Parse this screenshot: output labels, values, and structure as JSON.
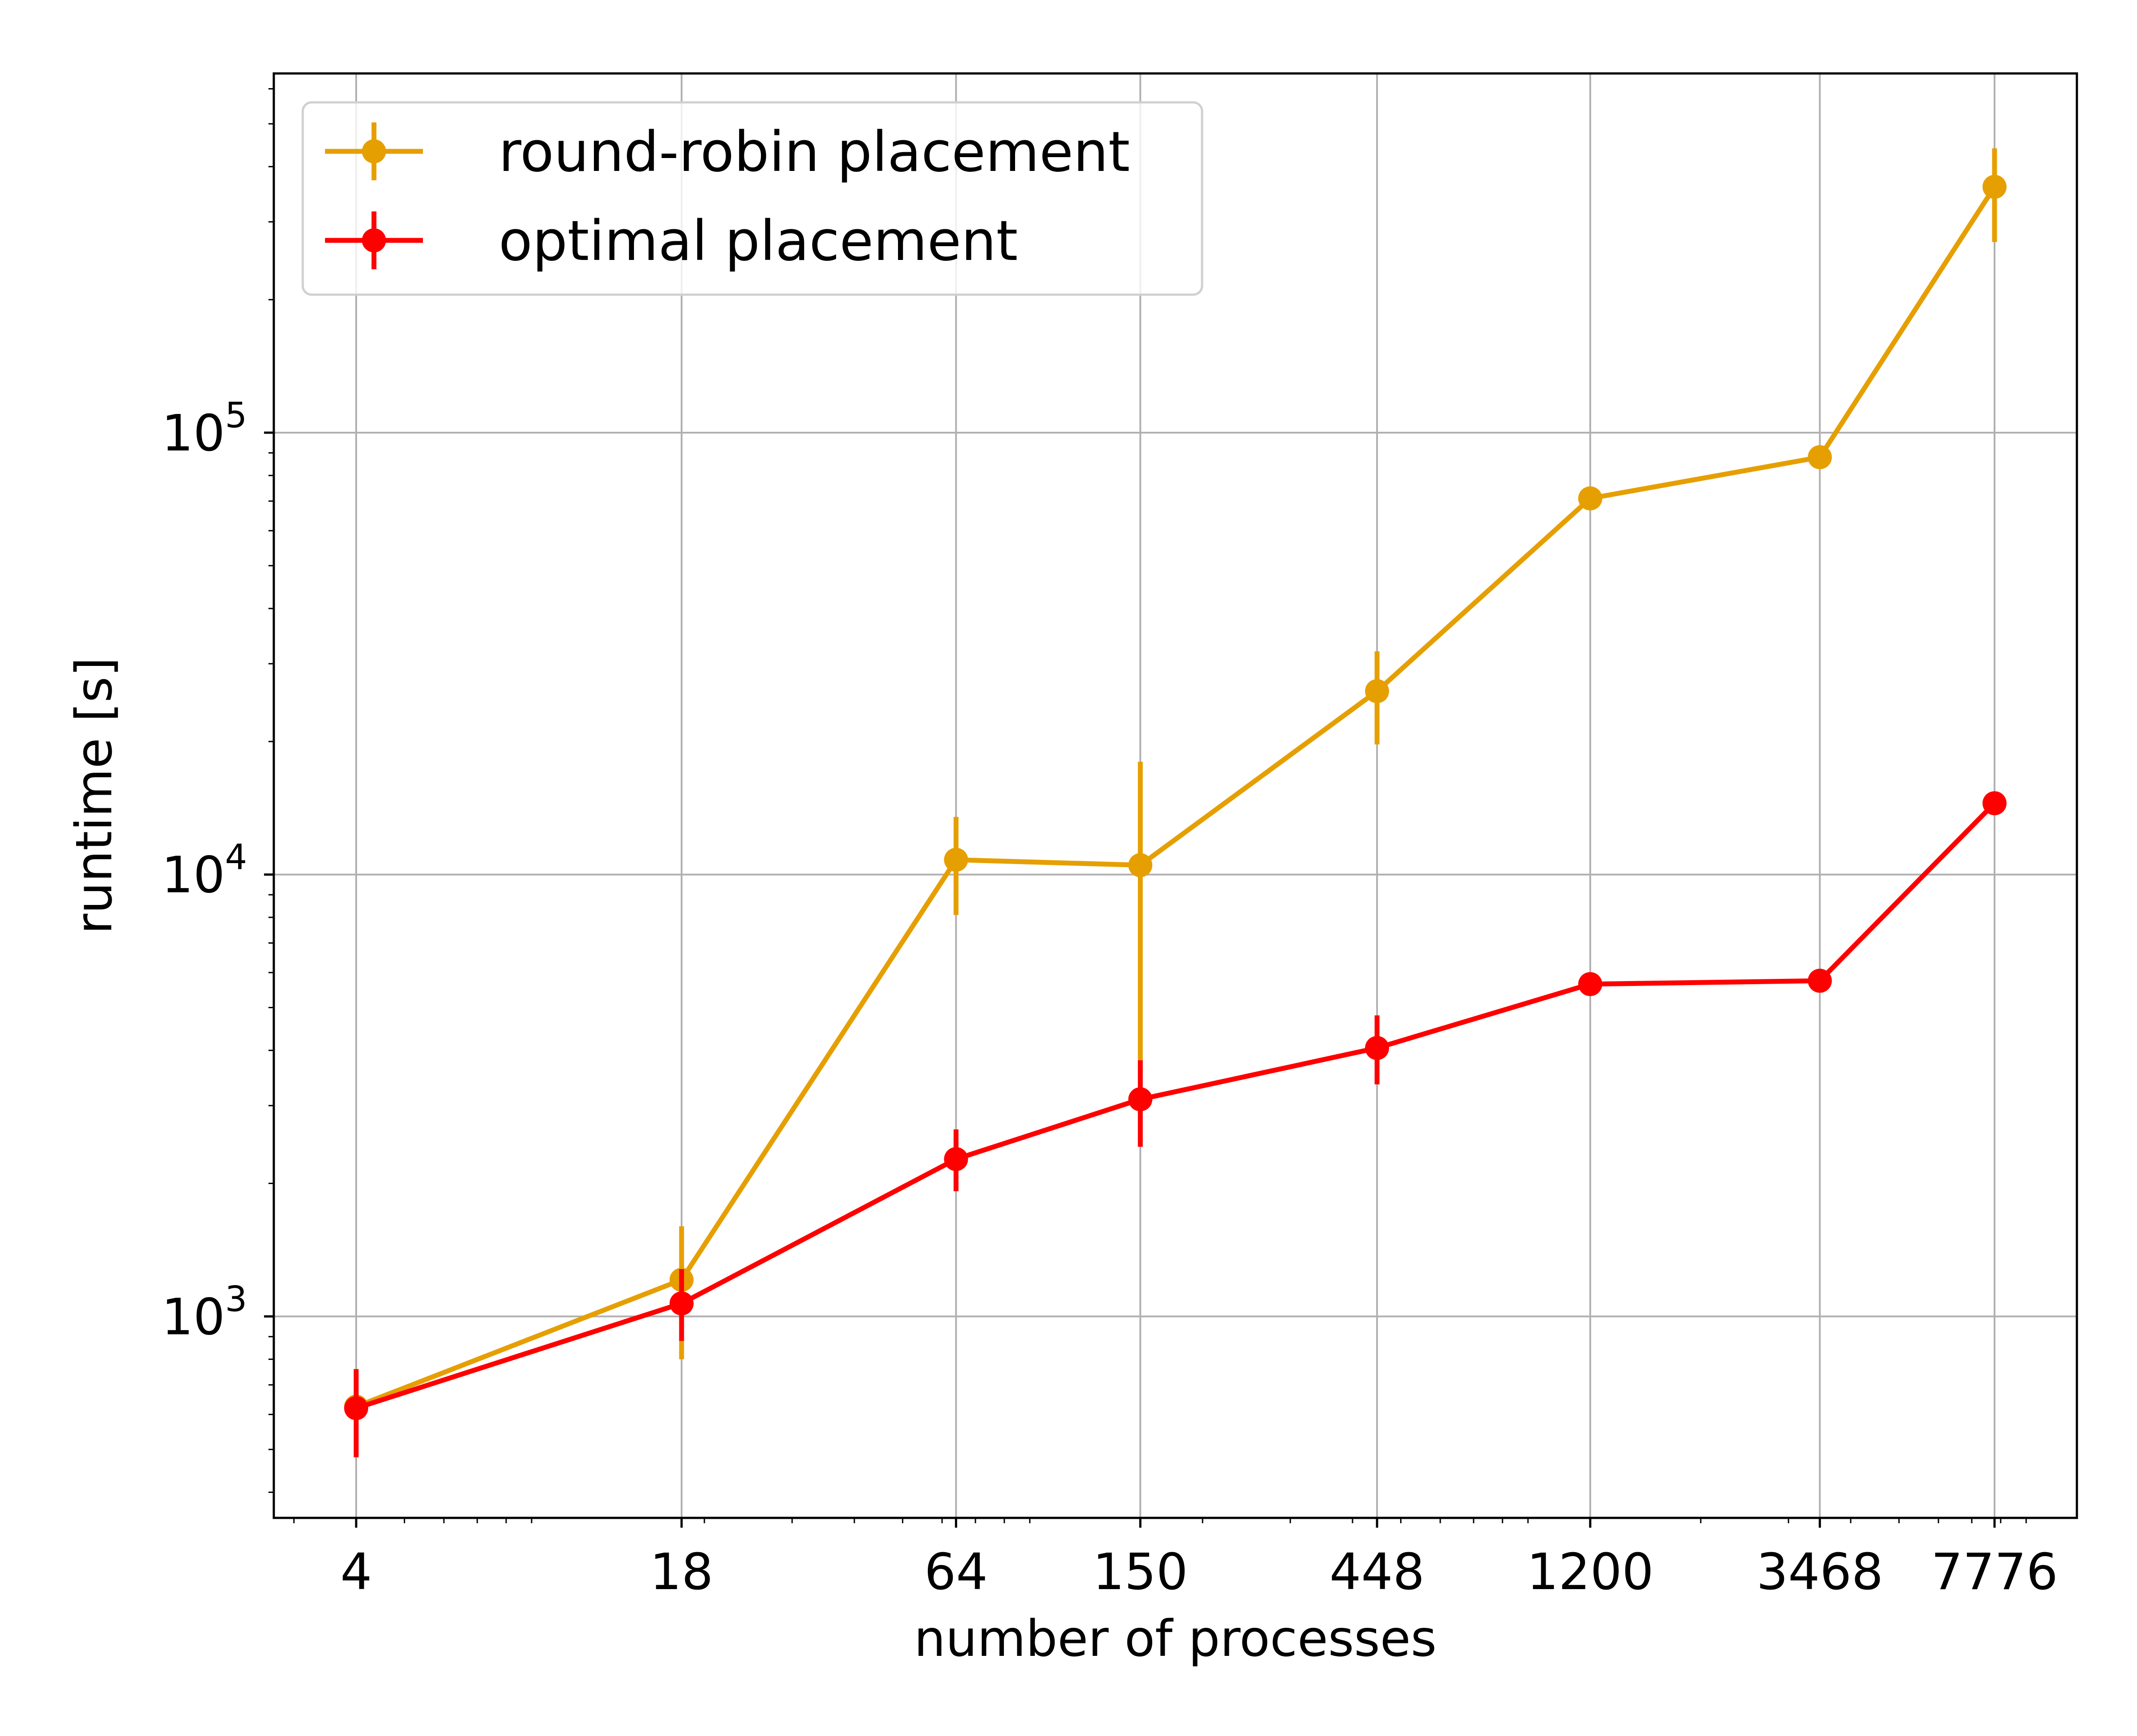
{
  "chart_data": {
    "type": "line",
    "xlabel": "number of processes",
    "ylabel": "runtime [s]",
    "xscale": "log",
    "yscale": "log",
    "x_ticks": [
      4,
      18,
      64,
      150,
      448,
      1200,
      3468,
      7776
    ],
    "x_tick_labels": [
      "4",
      "18",
      "64",
      "150",
      "448",
      "1200",
      "3468",
      "7776"
    ],
    "ylim": [
      350,
      650000
    ],
    "y_ticks": [
      {
        "value": 1000,
        "base": "10",
        "exp": "3"
      },
      {
        "value": 10000,
        "base": "10",
        "exp": "4"
      },
      {
        "value": 100000,
        "base": "10",
        "exp": "5"
      }
    ],
    "grid": true,
    "legend_position": "top-left",
    "series": [
      {
        "name": "round-robin placement",
        "color": "#E69F00",
        "x": [
          4,
          18,
          64,
          150,
          448,
          1200,
          3468,
          7776
        ],
        "y": [
          625,
          1210,
          10800,
          10500,
          26000,
          71000,
          88000,
          360000
        ],
        "y_err_low": [
          520,
          800,
          8100,
          3800,
          19700,
          71000,
          88000,
          270000
        ],
        "y_err_high": [
          760,
          1600,
          13500,
          18000,
          32000,
          71000,
          88000,
          440000
        ]
      },
      {
        "name": "optimal placement",
        "color": "#FF0000",
        "x": [
          4,
          18,
          64,
          150,
          448,
          1200,
          3468,
          7776
        ],
        "y": [
          620,
          1070,
          2270,
          3100,
          4050,
          5650,
          5750,
          14500
        ],
        "y_err_low": [
          480,
          880,
          1920,
          2420,
          3350,
          5650,
          5750,
          14500
        ],
        "y_err_high": [
          760,
          1280,
          2650,
          3800,
          4800,
          5650,
          5750,
          14500
        ]
      }
    ]
  }
}
